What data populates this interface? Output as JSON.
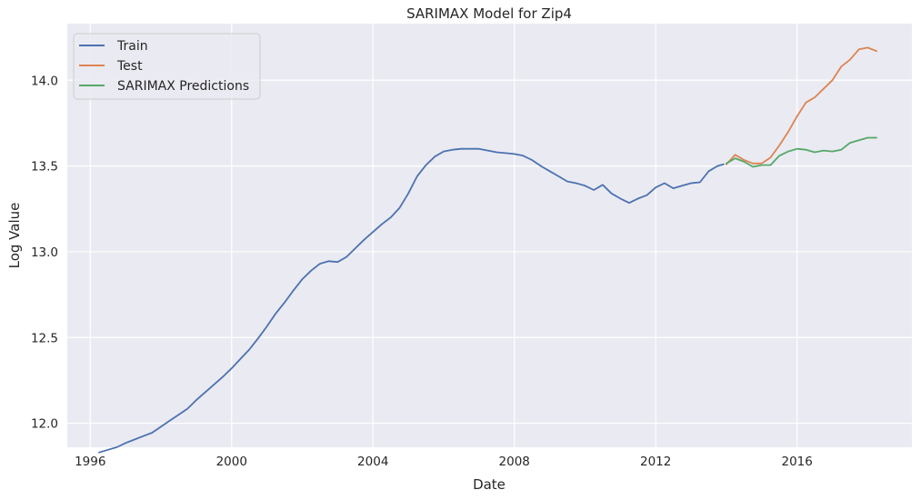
{
  "chart_data": {
    "type": "line",
    "title": "SARIMAX Model for Zip4",
    "xlabel": "Date",
    "ylabel": "Log Value",
    "xlim": [
      1995.35,
      2019.25
    ],
    "ylim": [
      11.86,
      14.33
    ],
    "x_ticks": [
      1996,
      2000,
      2004,
      2008,
      2012,
      2016
    ],
    "x_tick_labels": [
      "1996",
      "2000",
      "2004",
      "2008",
      "2012",
      "2016"
    ],
    "y_ticks": [
      12.0,
      12.5,
      13.0,
      13.5,
      14.0
    ],
    "y_tick_labels": [
      "12.0",
      "12.5",
      "13.0",
      "13.5",
      "14.0"
    ],
    "grid": true,
    "legend_position": "top-left",
    "colors": {
      "background": "#eaeaf2",
      "grid": "#ffffff",
      "train": "#4c72b0",
      "test": "#dd8452",
      "predictions": "#55a868"
    },
    "series": [
      {
        "name": "Train",
        "color": "#4c72b0",
        "x": [
          1996.25,
          1996.5,
          1996.75,
          1997.0,
          1997.25,
          1997.5,
          1997.75,
          1998.0,
          1998.25,
          1998.5,
          1998.75,
          1999.0,
          1999.25,
          1999.5,
          1999.75,
          2000.0,
          2000.25,
          2000.5,
          2000.75,
          2001.0,
          2001.25,
          2001.5,
          2001.75,
          2002.0,
          2002.25,
          2002.5,
          2002.75,
          2003.0,
          2003.25,
          2003.5,
          2003.75,
          2004.0,
          2004.25,
          2004.5,
          2004.75,
          2005.0,
          2005.25,
          2005.5,
          2005.75,
          2006.0,
          2006.25,
          2006.5,
          2006.75,
          2007.0,
          2007.25,
          2007.5,
          2007.75,
          2008.0,
          2008.25,
          2008.5,
          2008.75,
          2009.0,
          2009.25,
          2009.5,
          2009.75,
          2010.0,
          2010.25,
          2010.5,
          2010.75,
          2011.0,
          2011.25,
          2011.5,
          2011.75,
          2012.0,
          2012.25,
          2012.5,
          2012.75,
          2013.0,
          2013.25,
          2013.5,
          2013.75,
          2013.92
        ],
        "values": [
          11.83,
          11.845,
          11.86,
          11.885,
          11.905,
          11.925,
          11.945,
          11.98,
          12.015,
          12.05,
          12.085,
          12.135,
          12.18,
          12.225,
          12.27,
          12.32,
          12.375,
          12.43,
          12.495,
          12.565,
          12.64,
          12.705,
          12.775,
          12.84,
          12.89,
          12.93,
          12.945,
          12.94,
          12.97,
          13.02,
          13.07,
          13.115,
          13.16,
          13.2,
          13.255,
          13.34,
          13.44,
          13.505,
          13.555,
          13.585,
          13.595,
          13.6,
          13.6,
          13.6,
          13.59,
          13.58,
          13.575,
          13.57,
          13.56,
          13.535,
          13.5,
          13.47,
          13.44,
          13.41,
          13.4,
          13.385,
          13.36,
          13.39,
          13.34,
          13.31,
          13.285,
          13.31,
          13.33,
          13.375,
          13.4,
          13.37,
          13.385,
          13.4,
          13.405,
          13.47,
          13.5,
          13.51
        ]
      },
      {
        "name": "Test",
        "color": "#dd8452",
        "x": [
          2014.0,
          2014.25,
          2014.5,
          2014.75,
          2015.0,
          2015.25,
          2015.5,
          2015.75,
          2016.0,
          2016.25,
          2016.5,
          2016.75,
          2017.0,
          2017.25,
          2017.5,
          2017.75,
          2018.0,
          2018.25
        ],
        "values": [
          13.51,
          13.565,
          13.535,
          13.515,
          13.515,
          13.55,
          13.62,
          13.7,
          13.79,
          13.87,
          13.9,
          13.95,
          14.0,
          14.08,
          14.12,
          14.18,
          14.19,
          14.17
        ]
      },
      {
        "name": "SARIMAX Predictions",
        "color": "#55a868",
        "x": [
          2014.0,
          2014.25,
          2014.5,
          2014.75,
          2015.0,
          2015.25,
          2015.5,
          2015.75,
          2016.0,
          2016.25,
          2016.5,
          2016.75,
          2017.0,
          2017.25,
          2017.5,
          2017.75,
          2018.0,
          2018.25
        ],
        "values": [
          13.515,
          13.545,
          13.525,
          13.495,
          13.505,
          13.505,
          13.56,
          13.585,
          13.6,
          13.595,
          13.58,
          13.59,
          13.585,
          13.595,
          13.635,
          13.65,
          13.665,
          13.665
        ]
      }
    ]
  }
}
